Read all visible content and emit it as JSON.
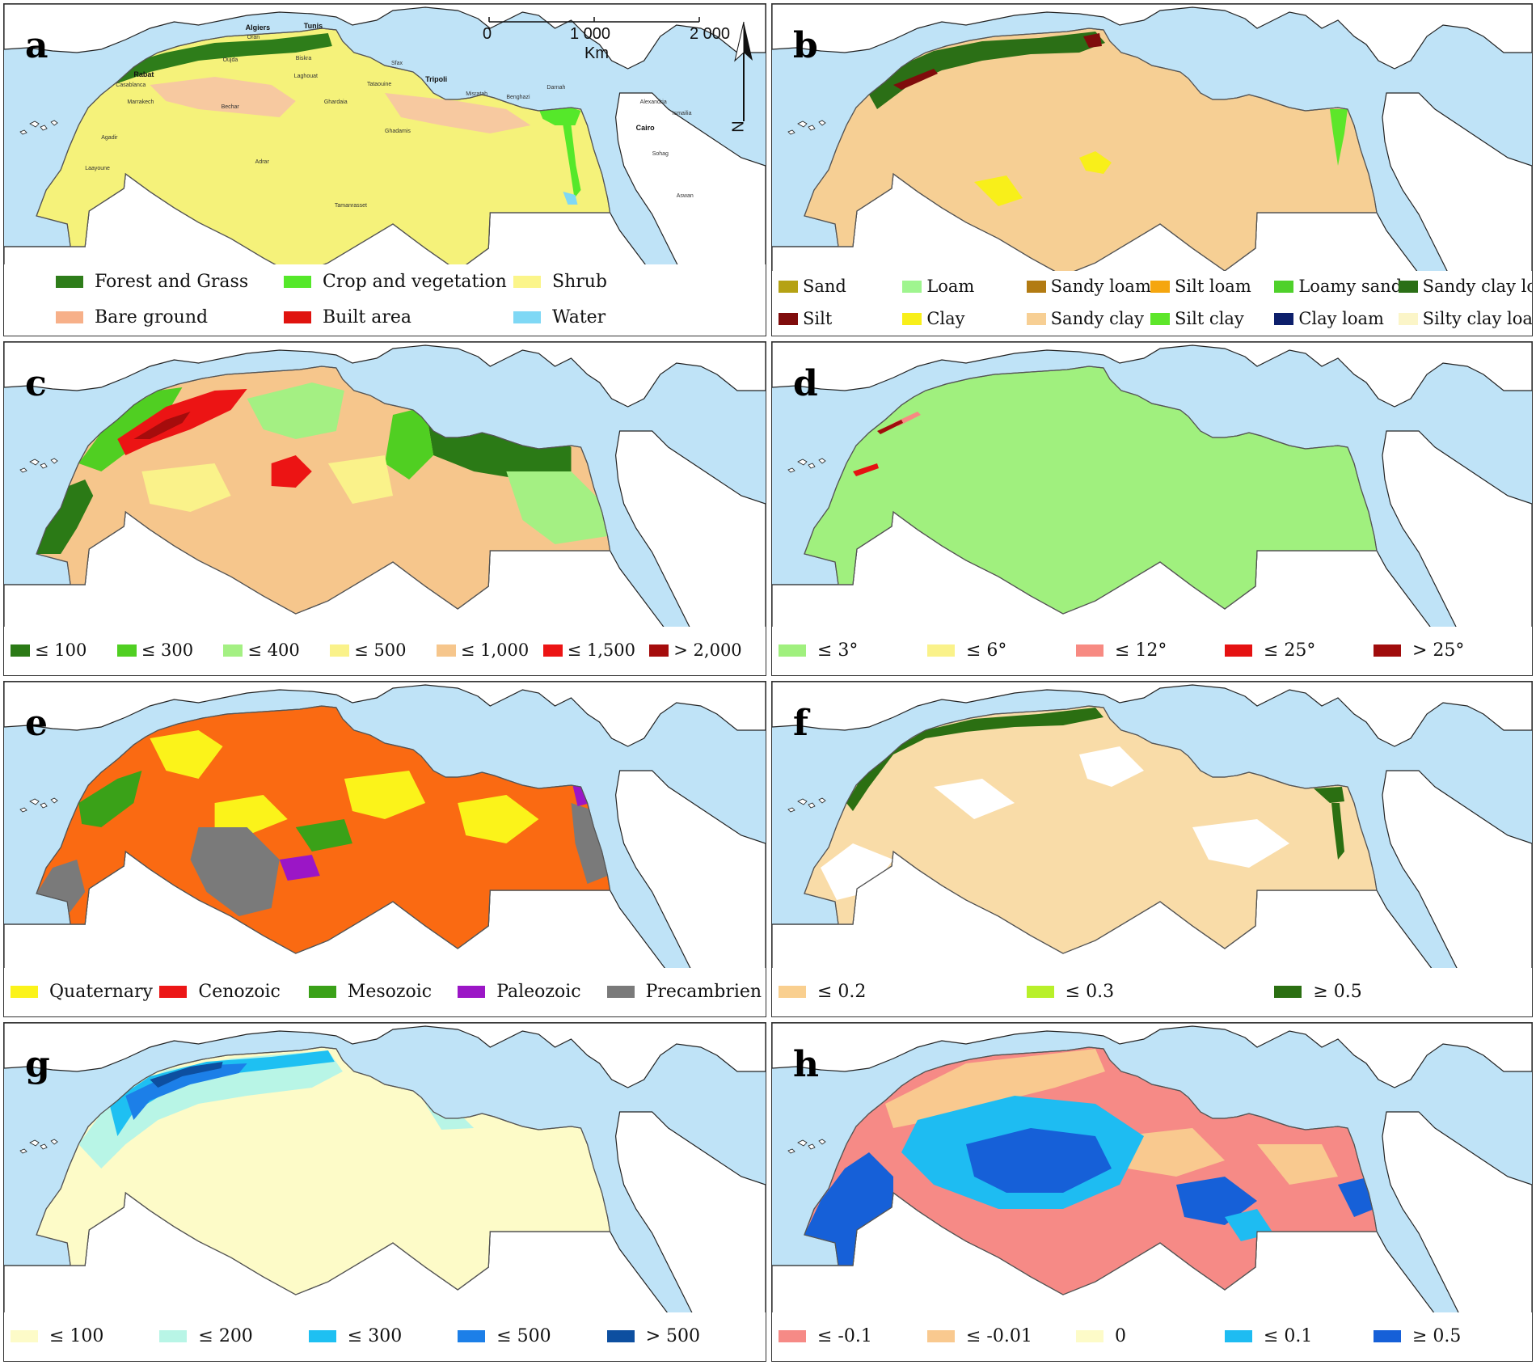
{
  "colors": {
    "sea": "#bfe3f7",
    "land": "#ffffff",
    "outline": "#555555"
  },
  "panels": [
    {
      "id": "a",
      "label": "a",
      "base": "#f5f27a",
      "legend": {
        "height": 88,
        "cols": 3,
        "items": [
          {
            "label": "Forest and Grass",
            "color": "#2e7d1a"
          },
          {
            "label": "Crop and vegetation",
            "color": "#55e82a"
          },
          {
            "label": "Shrub",
            "color": "#fbf58a"
          },
          {
            "label": "Bare ground",
            "color": "#f7b089"
          },
          {
            "label": "Built area",
            "color": "#e0130f"
          },
          {
            "label": "Water",
            "color": "#7fd8f5"
          }
        ]
      }
    },
    {
      "id": "b",
      "label": "b",
      "base": "#f6cf94",
      "legend": {
        "height": 80,
        "cols": 6,
        "items": [
          {
            "label": "Sand",
            "color": "#b5a214"
          },
          {
            "label": "Loam",
            "color": "#9ff58f"
          },
          {
            "label": "Sandy loam",
            "color": "#b27b12"
          },
          {
            "label": "Silt loam",
            "color": "#f5a60f"
          },
          {
            "label": "Loamy sand",
            "color": "#4fd12b"
          },
          {
            "label": "Sandy clay loam",
            "color": "#2b6f16"
          },
          {
            "label": "Silt",
            "color": "#7f0c0c"
          },
          {
            "label": "Clay",
            "color": "#f8ef1a"
          },
          {
            "label": "Sandy clay",
            "color": "#f7cf94"
          },
          {
            "label": "Silt clay",
            "color": "#5de62a"
          },
          {
            "label": "Clay loam",
            "color": "#0d1f6b"
          },
          {
            "label": "Silty clay loam",
            "color": "#fbf5c8"
          }
        ]
      }
    },
    {
      "id": "c",
      "label": "c",
      "base": "#f6c68c",
      "legend": {
        "height": 60,
        "cols": 7,
        "items": [
          {
            "label": "≤ 100",
            "color": "#2b7a16"
          },
          {
            "label": "≤ 300",
            "color": "#50cf22"
          },
          {
            "label": "≤ 400",
            "color": "#a4f083"
          },
          {
            "label": "≤ 500",
            "color": "#faf28a"
          },
          {
            "label": "≤ 1,000",
            "color": "#f6c68c"
          },
          {
            "label": "≤ 1,500",
            "color": "#ec1414"
          },
          {
            "label": "> 2,000",
            "color": "#a50c0c"
          }
        ]
      }
    },
    {
      "id": "d",
      "label": "d",
      "base": "#a0f07e",
      "legend": {
        "height": 60,
        "cols": 5,
        "items": [
          {
            "label": "≤ 3°",
            "color": "#a0f07e"
          },
          {
            "label": "≤ 6°",
            "color": "#faf28a"
          },
          {
            "label": "≤ 12°",
            "color": "#f78a82"
          },
          {
            "label": "≤ 25°",
            "color": "#e51212"
          },
          {
            "label": "> 25°",
            "color": "#a00c0c"
          }
        ]
      }
    },
    {
      "id": "e",
      "label": "e",
      "base": "#fa6a12",
      "legend": {
        "height": 60,
        "cols": 5,
        "items": [
          {
            "label": "Quaternary",
            "color": "#fbf31a"
          },
          {
            "label": "Cenozoic",
            "color": "#ec1616"
          },
          {
            "label": "Mesozoic",
            "color": "#3aa118"
          },
          {
            "label": "Paleozoic",
            "color": "#9b16c6"
          },
          {
            "label": "Precambrien",
            "color": "#7a7a7a"
          }
        ]
      }
    },
    {
      "id": "f",
      "label": "f",
      "base": "#f9dca8",
      "legend": {
        "height": 60,
        "cols": 3,
        "items": [
          {
            "label": "≤ 0.2",
            "color": "#f9cf8f"
          },
          {
            "label": "≤ 0.3",
            "color": "#b8f02a"
          },
          {
            "label": "≥ 0.5",
            "color": "#2b6f12"
          }
        ]
      }
    },
    {
      "id": "g",
      "label": "g",
      "base": "#fdfbc8",
      "legend": {
        "height": 60,
        "cols": 5,
        "items": [
          {
            "label": "≤ 100",
            "color": "#fdfbc8"
          },
          {
            "label": "≤  200",
            "color": "#b8f5e6"
          },
          {
            "label": "≤  300",
            "color": "#1ec0f2"
          },
          {
            "label": "≤  500",
            "color": "#1c7fe8"
          },
          {
            "label": "> 500",
            "color": "#0d4fa0"
          }
        ]
      }
    },
    {
      "id": "h",
      "label": "h",
      "base": "#f68a86",
      "legend": {
        "height": 60,
        "cols": 5,
        "items": [
          {
            "label": "≤ -0.1",
            "color": "#f68a86"
          },
          {
            "label": "≤ -0.01",
            "color": "#f9c98f"
          },
          {
            "label": "0",
            "color": "#fdfbc8"
          },
          {
            "label": "≤ 0.1",
            "color": "#1ebcf2"
          },
          {
            "label": "≥ 0.5",
            "color": "#1660d8"
          }
        ]
      }
    }
  ],
  "scale_bar": {
    "ticks": [
      "0",
      "1 000",
      "2 000"
    ],
    "unit": "Km"
  },
  "north": "N",
  "cities": [
    {
      "name": "Algiers",
      "big": true
    },
    {
      "name": "Tunis",
      "big": true
    },
    {
      "name": "Oran"
    },
    {
      "name": "Rabat",
      "big": true
    },
    {
      "name": "Casablanca"
    },
    {
      "name": "Oujda"
    },
    {
      "name": "Biskra"
    },
    {
      "name": "Sfax"
    },
    {
      "name": "Laghouat"
    },
    {
      "name": "Tataouine"
    },
    {
      "name": "Tripoli",
      "big": true
    },
    {
      "name": "Marrakech"
    },
    {
      "name": "Bechar"
    },
    {
      "name": "Ghardaia"
    },
    {
      "name": "Misratah"
    },
    {
      "name": "Benghazi"
    },
    {
      "name": "Darnah"
    },
    {
      "name": "Alexandria"
    },
    {
      "name": "Ismailia"
    },
    {
      "name": "Cairo",
      "big": true
    },
    {
      "name": "Agadir"
    },
    {
      "name": "Ghadamis"
    },
    {
      "name": "Adrar"
    },
    {
      "name": "Laayoune"
    },
    {
      "name": "Sohag"
    },
    {
      "name": "Tamanrasset"
    },
    {
      "name": "Aswan"
    }
  ]
}
